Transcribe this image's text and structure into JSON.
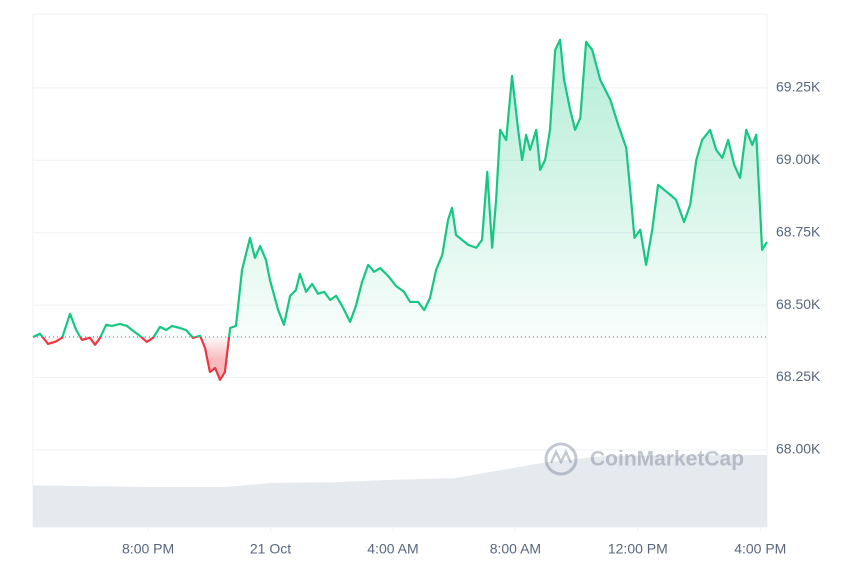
{
  "chart_data": {
    "type": "line",
    "x": [
      16.24,
      16.47,
      16.73,
      16.96,
      17.19,
      17.45,
      17.65,
      17.84,
      18.1,
      18.27,
      18.43,
      18.63,
      18.82,
      19.08,
      19.31,
      19.51,
      19.73,
      19.96,
      20.16,
      20.39,
      20.59,
      20.78,
      21.04,
      21.24,
      21.47,
      21.7,
      21.86,
      22.02,
      22.19,
      22.35,
      22.51,
      22.68,
      22.87,
      23.07,
      23.33,
      23.49,
      23.66,
      23.85,
      23.98,
      24.25,
      24.44,
      24.64,
      24.83,
      24.96,
      25.16,
      25.36,
      25.55,
      25.75,
      25.95,
      26.14,
      26.34,
      26.6,
      26.8,
      26.99,
      27.19,
      27.38,
      27.58,
      27.84,
      28.1,
      28.36,
      28.56,
      28.82,
      29.02,
      29.21,
      29.41,
      29.61,
      29.8,
      29.93,
      30.06,
      30.26,
      30.46,
      30.72,
      30.91,
      31.08,
      31.24,
      31.37,
      31.5,
      31.7,
      31.89,
      32.09,
      32.22,
      32.35,
      32.48,
      32.68,
      32.81,
      32.97,
      33.13,
      33.3,
      33.46,
      33.59,
      33.79,
      33.95,
      34.12,
      34.31,
      34.51,
      34.77,
      35.1,
      35.36,
      35.62,
      35.75,
      35.89,
      36.08,
      36.27,
      36.47,
      36.66,
      36.86,
      37.06,
      37.25,
      37.51,
      37.71,
      37.91,
      38.1,
      38.36,
      38.56,
      38.76,
      38.95,
      39.15,
      39.34,
      39.54,
      39.74,
      39.87,
      40.06,
      40.22
    ],
    "values": [
      68390,
      68401,
      68366,
      68373,
      68387,
      68470,
      68414,
      68380,
      68387,
      68363,
      68387,
      68432,
      68428,
      68435,
      68428,
      68411,
      68394,
      68373,
      68387,
      68425,
      68414,
      68428,
      68421,
      68414,
      68387,
      68394,
      68352,
      68269,
      68283,
      68242,
      68269,
      68421,
      68428,
      68622,
      68732,
      68663,
      68704,
      68656,
      68587,
      68483,
      68432,
      68532,
      68552,
      68608,
      68546,
      68573,
      68539,
      68546,
      68518,
      68532,
      68497,
      68442,
      68501,
      68580,
      68639,
      68615,
      68628,
      68601,
      68566,
      68546,
      68511,
      68511,
      68483,
      68525,
      68622,
      68673,
      68794,
      68836,
      68742,
      68725,
      68708,
      68698,
      68725,
      68960,
      68698,
      68863,
      69105,
      69070,
      69291,
      69105,
      69001,
      69088,
      69036,
      69105,
      68967,
      69001,
      69105,
      69381,
      69416,
      69278,
      69174,
      69105,
      69146,
      69409,
      69381,
      69278,
      69209,
      69122,
      69043,
      68898,
      68732,
      68760,
      68639,
      68760,
      68915,
      68898,
      68881,
      68863,
      68787,
      68846,
      69001,
      69070,
      69105,
      69036,
      69008,
      69070,
      68984,
      68939,
      69105,
      69053,
      69088,
      68691,
      68718
    ],
    "baseline": 68390,
    "up_color": "#16c784",
    "down_color": "#ea3943",
    "xlim": [
      16.24,
      40.22
    ],
    "xticks": [
      {
        "value": 20,
        "label": "8:00 PM"
      },
      {
        "value": 24,
        "label": "21 Oct"
      },
      {
        "value": 28,
        "label": "4:00 AM"
      },
      {
        "value": 32,
        "label": "8:00 AM"
      },
      {
        "value": 36,
        "label": "12:00 PM"
      },
      {
        "value": 40,
        "label": "4:00 PM"
      }
    ],
    "ylim": [
      67734,
      69505
    ],
    "yticks": [
      {
        "value": 68000,
        "label": "68.00K"
      },
      {
        "value": 68250,
        "label": "68.25K"
      },
      {
        "value": 68500,
        "label": "68.50K"
      },
      {
        "value": 68750,
        "label": "68.75K"
      },
      {
        "value": 69000,
        "label": "69.00K"
      },
      {
        "value": 69250,
        "label": "69.25K"
      }
    ],
    "grid": true,
    "volume": {
      "x": [
        16.24,
        20,
        22.5,
        24,
        26,
        28,
        30,
        31.5,
        33,
        35,
        40.22
      ],
      "values": [
        52,
        50,
        50,
        55,
        56,
        59,
        61,
        71,
        81,
        89,
        90
      ],
      "ylim": [
        0,
        100
      ],
      "color": "#e6eaee"
    },
    "watermark": "CoinMarketCap"
  }
}
